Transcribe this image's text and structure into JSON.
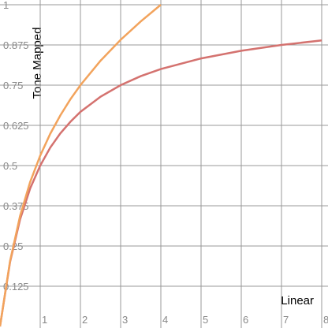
{
  "chart_data": {
    "type": "line",
    "x_label": "Linear",
    "y_label": "Tone Mapped",
    "series": [
      {
        "color": "#d4726f",
        "x": [
          0,
          0.25,
          0.5,
          0.75,
          1,
          1.25,
          1.5,
          1.75,
          2,
          2.5,
          3,
          3.5,
          4,
          5,
          6,
          7,
          8
        ],
        "values": [
          0,
          0.2,
          0.333,
          0.429,
          0.5,
          0.556,
          0.6,
          0.636,
          0.667,
          0.714,
          0.75,
          0.778,
          0.8,
          0.833,
          0.857,
          0.875,
          0.889
        ]
      },
      {
        "color": "#f2a35c",
        "x": [
          0,
          0.25,
          0.5,
          0.75,
          1,
          1.25,
          1.5,
          1.75,
          2,
          2.5,
          3,
          3.5,
          4
        ],
        "values": [
          0,
          0.203,
          0.344,
          0.449,
          0.531,
          0.599,
          0.656,
          0.706,
          0.75,
          0.826,
          0.891,
          0.948,
          1
        ]
      }
    ],
    "xlim": [
      0,
      8
    ],
    "ylim": [
      0,
      1
    ],
    "xticks": [
      1,
      2,
      3,
      4,
      5,
      6,
      7,
      8
    ],
    "yticks": [
      0.125,
      0.25,
      0.375,
      0.5,
      0.625,
      0.75,
      0.875,
      1
    ],
    "grid": true
  }
}
